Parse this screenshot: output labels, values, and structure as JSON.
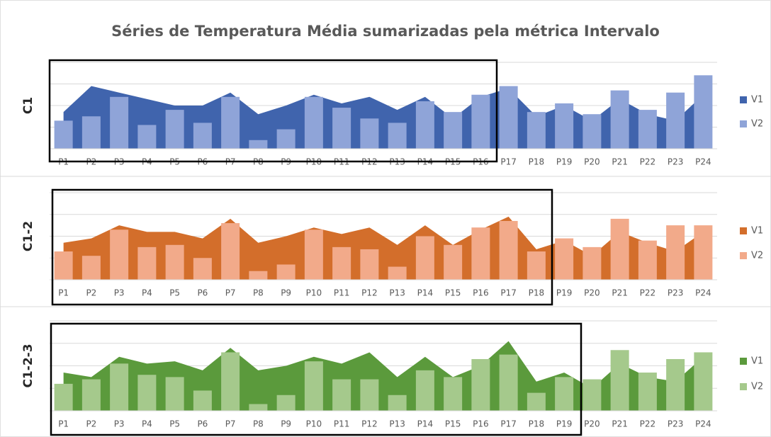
{
  "title": "Séries de Temperatura Média sumarizadas pela métrica Intervalo",
  "chart_data": [
    {
      "type": "area_bar",
      "ylabel": "C1",
      "categories": [
        "P1",
        "P2",
        "P3",
        "P4",
        "P5",
        "P6",
        "P7",
        "P8",
        "P9",
        "P10",
        "P11",
        "P12",
        "P13",
        "P14",
        "P15",
        "P16",
        "P17",
        "P18",
        "P19",
        "P20",
        "P21",
        "P22",
        "P23",
        "P24"
      ],
      "ylim": [
        0,
        4
      ],
      "yticks": [
        0,
        1,
        2,
        3,
        4
      ],
      "grid": true,
      "series": [
        {
          "name": "V1",
          "kind": "area",
          "color": "#4064ad",
          "values": [
            1.7,
            2.9,
            2.6,
            2.3,
            2.0,
            2.0,
            2.6,
            1.6,
            2.0,
            2.5,
            2.1,
            2.4,
            1.8,
            2.4,
            1.4,
            2.4,
            2.8,
            1.5,
            2.0,
            1.3,
            2.3,
            1.6,
            1.3,
            2.5
          ]
        },
        {
          "name": "V2",
          "kind": "bar",
          "color": "#8fa4d8",
          "values": [
            1.3,
            1.5,
            2.4,
            1.1,
            1.8,
            1.2,
            2.4,
            0.4,
            0.9,
            2.4,
            1.9,
            1.4,
            1.2,
            2.2,
            1.7,
            2.5,
            2.9,
            1.7,
            2.1,
            1.6,
            2.7,
            1.8,
            2.6,
            3.4
          ]
        }
      ]
    },
    {
      "type": "area_bar",
      "ylabel": "C1-2",
      "categories": [
        "P1",
        "P2",
        "P3",
        "P4",
        "P5",
        "P6",
        "P7",
        "P8",
        "P9",
        "P10",
        "P11",
        "P12",
        "P13",
        "P14",
        "P15",
        "P16",
        "P17",
        "P18",
        "P19",
        "P20",
        "P21",
        "P22",
        "P23",
        "P24"
      ],
      "ylim": [
        0,
        4
      ],
      "yticks": [
        0,
        1,
        2,
        3,
        4
      ],
      "grid": true,
      "series": [
        {
          "name": "V1",
          "kind": "area",
          "color": "#d36e2b",
          "values": [
            1.7,
            1.9,
            2.5,
            2.2,
            2.2,
            1.9,
            2.8,
            1.7,
            2.0,
            2.4,
            2.1,
            2.4,
            1.6,
            2.5,
            1.6,
            2.3,
            2.9,
            1.4,
            1.8,
            1.1,
            2.2,
            1.7,
            1.3,
            2.2
          ]
        },
        {
          "name": "V2",
          "kind": "bar",
          "color": "#f2aa8a",
          "values": [
            1.3,
            1.1,
            2.3,
            1.5,
            1.6,
            1.0,
            2.6,
            0.4,
            0.7,
            2.3,
            1.5,
            1.4,
            0.6,
            2.0,
            1.6,
            2.4,
            2.7,
            1.3,
            1.9,
            1.5,
            2.8,
            1.8,
            2.5,
            2.5
          ]
        }
      ]
    },
    {
      "type": "area_bar",
      "ylabel": "C1-2-3",
      "categories": [
        "P1",
        "P2",
        "P3",
        "P4",
        "P5",
        "P6",
        "P7",
        "P8",
        "P9",
        "P10",
        "P11",
        "P12",
        "P13",
        "P14",
        "P15",
        "P16",
        "P17",
        "P18",
        "P19",
        "P20",
        "P21",
        "P22",
        "P23",
        "P24"
      ],
      "ylim": [
        0,
        4
      ],
      "yticks": [
        0,
        1,
        2,
        3,
        4
      ],
      "grid": true,
      "series": [
        {
          "name": "V1",
          "kind": "area",
          "color": "#5b9a3c",
          "values": [
            1.7,
            1.5,
            2.4,
            2.1,
            2.2,
            1.8,
            2.8,
            1.8,
            2.0,
            2.4,
            2.1,
            2.6,
            1.5,
            2.4,
            1.5,
            2.0,
            3.1,
            1.3,
            1.7,
            1.0,
            2.1,
            1.5,
            1.3,
            2.4
          ]
        },
        {
          "name": "V2",
          "kind": "bar",
          "color": "#a5c98c",
          "values": [
            1.2,
            1.4,
            2.1,
            1.6,
            1.5,
            0.9,
            2.6,
            0.3,
            0.7,
            2.2,
            1.4,
            1.4,
            0.7,
            1.8,
            1.5,
            2.3,
            2.5,
            0.8,
            1.5,
            1.4,
            2.7,
            1.7,
            2.3,
            2.6
          ]
        }
      ]
    }
  ]
}
